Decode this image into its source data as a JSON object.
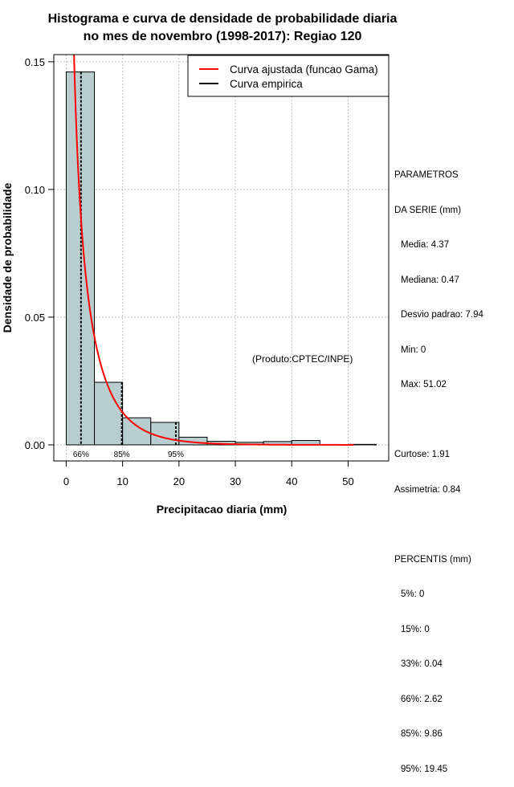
{
  "chart_data": {
    "type": "histogram",
    "title": "Histograma e curva de densidade de probabilidade diaria",
    "subtitle": "no mes de novembro (1998-2017): Regiao 120",
    "xlabel": "Precipitacao diaria (mm)",
    "ylabel": "Densidade de probabilidade",
    "xlim": [
      -2.2,
      57.2
    ],
    "ylim": [
      -0.0063,
      0.1528
    ],
    "x_ticks": [
      0,
      10,
      20,
      30,
      40,
      50
    ],
    "y_ticks": [
      0.0,
      0.05,
      0.1,
      0.15
    ],
    "x_tick_labels": [
      "0",
      "10",
      "20",
      "30",
      "40",
      "50"
    ],
    "y_tick_labels": [
      "0.00",
      "0.05",
      "0.10",
      "0.15"
    ],
    "bin_edges": [
      0,
      5,
      10,
      15,
      20,
      25,
      30,
      35,
      40,
      45,
      50,
      55
    ],
    "bin_densities": [
      0.146,
      0.0245,
      0.0106,
      0.0088,
      0.003,
      0.0014,
      0.001,
      0.0013,
      0.0017,
      0.0,
      0.0002
    ],
    "gamma_fit": {
      "shape": 0.47,
      "scale": 6.0,
      "color": "#ff0000"
    },
    "bar_color": "#b8cece",
    "percentile_markers": [
      {
        "label": "66%",
        "x": 2.62
      },
      {
        "label": "85%",
        "x": 9.86
      },
      {
        "label": "95%",
        "x": 19.45
      }
    ],
    "legend": [
      {
        "label": "Curva ajustada (funcao Gama)",
        "color": "#ff0000"
      },
      {
        "label": "Curva empirica",
        "color": "#000000"
      }
    ],
    "annotation": "(Produto:CPTEC/INPE)"
  },
  "stats": {
    "header1": "PARAMETROS",
    "header2": "DA SERIE (mm)",
    "media": "Media: 4.37",
    "mediana": "Mediana: 0.47",
    "desvio": "Desvio padrao: 7.94",
    "min": "Min: 0",
    "max": "Max: 51.02",
    "curtose": "Curtose: 1.91",
    "assimetria": "Assimetria: 0.84",
    "percentis_header": "PERCENTIS (mm)",
    "p5": "5%: 0",
    "p15": "15%: 0",
    "p33": "33%: 0.04",
    "p66": "66%: 2.62",
    "p85": "85%: 9.86",
    "p95": "95%: 19.45"
  }
}
